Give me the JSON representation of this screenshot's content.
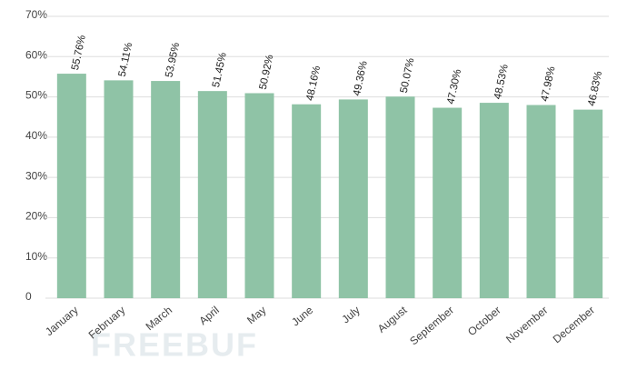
{
  "chart_data": {
    "type": "bar",
    "categories": [
      "January",
      "February",
      "March",
      "April",
      "May",
      "June",
      "July",
      "August",
      "September",
      "October",
      "November",
      "December"
    ],
    "values": [
      55.76,
      54.11,
      53.95,
      51.45,
      50.92,
      48.16,
      49.36,
      50.07,
      47.3,
      48.53,
      47.98,
      46.83
    ],
    "value_labels": [
      "55.76%",
      "54.11%",
      "53.95%",
      "51.45%",
      "50.92%",
      "48.16%",
      "49.36%",
      "50.07%",
      "47.30%",
      "48.53%",
      "47.98%",
      "46.83%"
    ],
    "color": "#8fc3a6",
    "ylim": [
      0,
      70
    ],
    "yticks": [
      0,
      {
        "value": 10,
        "label": "10%"
      },
      {
        "value": 20,
        "label": "20%"
      },
      {
        "value": 30,
        "label": "30%"
      },
      {
        "value": 40,
        "label": "40%"
      },
      {
        "value": 50,
        "label": "50%"
      },
      {
        "value": 60,
        "label": "60%"
      },
      {
        "value": 70,
        "label": "70%"
      }
    ],
    "grid": true
  },
  "watermark": "FREEBUF"
}
